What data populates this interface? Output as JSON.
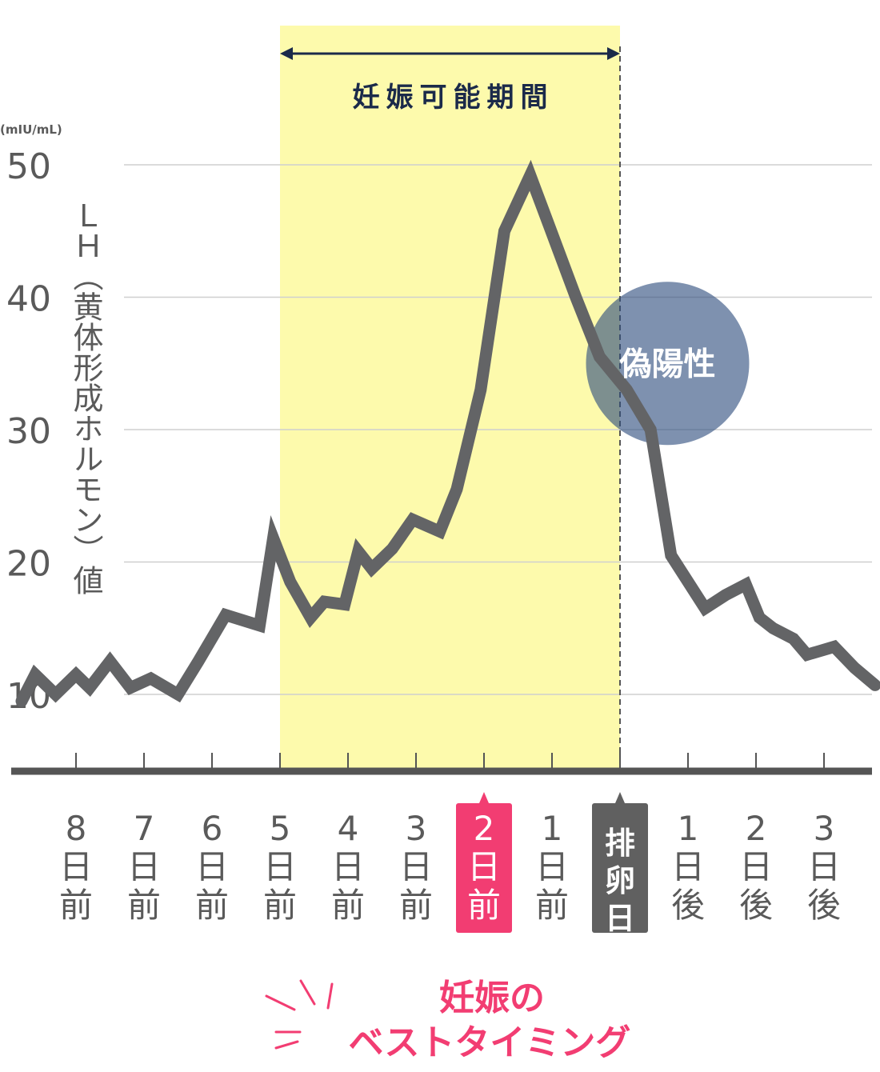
{
  "chart_data": {
    "type": "line",
    "unit": "(mIU/mL)",
    "ylabel": "ＬＨ（黄体形成ホルモン）値",
    "ylim": [
      4,
      54
    ],
    "yticks": [
      10,
      20,
      30,
      40,
      50
    ],
    "grid": true,
    "fertile_window_label": "妊娠可能期間",
    "fertile_window": {
      "from": 4,
      "to": 9
    },
    "false_positive_label": "偽陽性",
    "false_positive_center": {
      "x": 9.7,
      "y": 35
    },
    "day_labels": [
      {
        "num": "8",
        "rest": "日前",
        "style": "normal",
        "x": 1
      },
      {
        "num": "7",
        "rest": "日前",
        "style": "normal",
        "x": 2
      },
      {
        "num": "6",
        "rest": "日前",
        "style": "normal",
        "x": 3
      },
      {
        "num": "5",
        "rest": "日前",
        "style": "normal",
        "x": 4
      },
      {
        "num": "4",
        "rest": "日前",
        "style": "normal",
        "x": 5
      },
      {
        "num": "3",
        "rest": "日前",
        "style": "normal",
        "x": 6
      },
      {
        "num": "2",
        "rest": "日前",
        "style": "best",
        "x": 7
      },
      {
        "num": "1",
        "rest": "日前",
        "style": "normal",
        "x": 8
      },
      {
        "num": "",
        "rest": "排卵日",
        "style": "ovulation",
        "x": 9
      },
      {
        "num": "1",
        "rest": "日後",
        "style": "normal",
        "x": 10
      },
      {
        "num": "2",
        "rest": "日後",
        "style": "normal",
        "x": 11
      },
      {
        "num": "3",
        "rest": "日後",
        "style": "normal",
        "x": 12
      }
    ],
    "series": [
      {
        "x": [
          0.2,
          0.4,
          0.7,
          1.0,
          1.2,
          1.5,
          1.8,
          2.1,
          2.5,
          2.8,
          3.2,
          3.7,
          3.9,
          4.15,
          4.45,
          4.65,
          4.95,
          5.15,
          5.35,
          5.65,
          5.95,
          6.35,
          6.6,
          6.95,
          7.3,
          7.68,
          7.95,
          8.35,
          8.7,
          9.1,
          9.45,
          9.75,
          10.25,
          10.55,
          10.85,
          11.05,
          11.25,
          11.55,
          11.75,
          11.95,
          12.15,
          12.45,
          12.75
        ],
        "y": [
          9.5,
          11.5,
          10,
          11.5,
          10.5,
          12.5,
          10.5,
          11.2,
          10.0,
          12.5,
          16,
          15.2,
          21.8,
          18.5,
          15.8,
          17.0,
          16.8,
          20.8,
          19.5,
          21.0,
          23.2,
          22.3,
          25.5,
          33,
          45,
          49.2,
          45.5,
          40,
          35.5,
          33,
          30,
          20.5,
          16.5,
          17.5,
          18.3,
          15.8,
          15.0,
          14.2,
          13.0,
          13.3,
          13.6,
          12.0,
          10.7
        ],
        "color": "#636466"
      }
    ],
    "best_timing_line1": "妊娠の",
    "best_timing_line2": "ベストタイミング",
    "colors": {
      "fertile_fill": "#fdfaac",
      "arrow": "#1b2a4a",
      "grid": "#cfcfcf",
      "axis": "#555555",
      "text": "#5a5a5a",
      "best": "#f23d72",
      "ovulation_box": "#606060",
      "false_positive": "#2e4e7e"
    }
  }
}
